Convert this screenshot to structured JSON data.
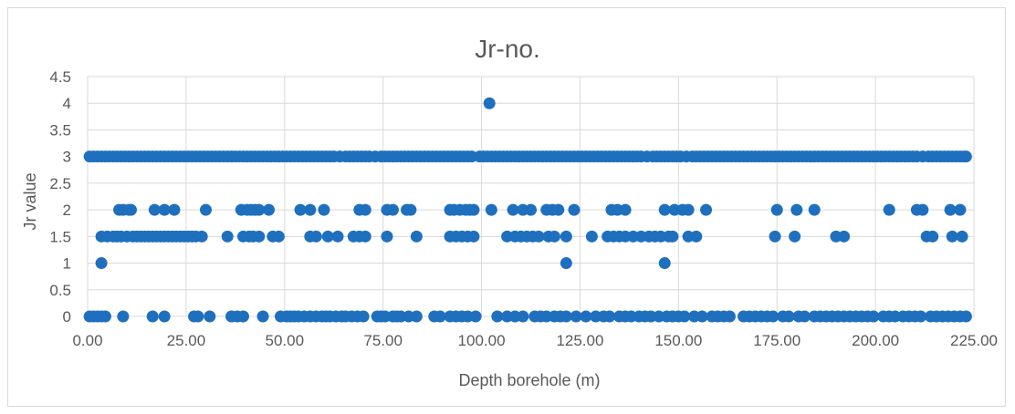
{
  "chart_data": {
    "type": "scatter",
    "title": "Jr-no.",
    "xlabel": "Depth borehole (m)",
    "ylabel": "Jr value",
    "xlim": [
      0,
      225
    ],
    "ylim": [
      0,
      4.5
    ],
    "x_ticks": [
      0,
      25,
      50,
      75,
      100,
      125,
      150,
      175,
      200,
      225
    ],
    "x_tick_labels": [
      "0.00",
      "25.00",
      "50.00",
      "75.00",
      "100.00",
      "125.00",
      "150.00",
      "175.00",
      "200.00",
      "225.00"
    ],
    "y_ticks": [
      0,
      0.5,
      1,
      1.5,
      2,
      2.5,
      3,
      3.5,
      4,
      4.5
    ],
    "y_tick_labels": [
      "0",
      "0.5",
      "1",
      "1.5",
      "2",
      "2.5",
      "3",
      "3.5",
      "4",
      "4.5"
    ],
    "grid": "vertical and horizontal major gridlines",
    "marker_color": "#1F6FBF",
    "series": [
      {
        "values_by_level": [
          {
            "y": 3,
            "x": [
              0.5,
              1.5,
              2.5,
              3.5,
              4.5,
              5.5,
              6.5,
              7.5,
              8.5,
              9.5,
              10.5,
              11.5,
              12.5,
              13.5,
              14.5,
              15.5,
              16.5,
              17.5,
              18.5,
              19.5,
              20.5,
              21.5,
              22.5,
              23.5,
              24.5,
              25.5,
              26.5,
              27.5,
              28.5,
              29.5,
              30.5,
              31.5,
              32.5,
              33.5,
              34.5,
              35.5,
              36.5,
              37.5,
              38.5,
              39.5,
              40.5,
              41.5,
              42.5,
              43.5,
              44.5,
              45.5,
              46.5,
              47.5,
              48.5,
              49.5,
              50.5,
              51.5,
              52.5,
              53.5,
              54.5,
              55.5,
              56.5,
              57.5,
              58.5,
              59.5,
              60.5,
              61.5,
              62.5,
              64,
              65.5,
              66.5,
              67.5,
              68.5,
              69.5,
              70.5,
              71.5,
              73,
              74.5,
              75.5,
              76.5,
              77.5,
              78.5,
              79.5,
              80.5,
              81.5,
              82.5,
              83.5,
              84.5,
              85.5,
              86.5,
              87.5,
              88.5,
              89.5,
              90.5,
              91.5,
              92.5,
              93.5,
              94.5,
              95.5,
              96.5,
              97.5,
              99.5,
              100.5,
              101.5,
              102.5,
              103.5,
              104.5,
              105.5,
              106.5,
              107.5,
              108.5,
              109.5,
              110.5,
              111.5,
              112.5,
              113.5,
              114.5,
              115.5,
              116.5,
              117.5,
              118.5,
              119.5,
              120.5,
              121.5,
              122.5,
              123.5,
              124.5,
              125.5,
              126.5,
              127.5,
              128.5,
              129.5,
              130.5,
              131.5,
              132.5,
              133.5,
              134.5,
              135.5,
              136.5,
              137.5,
              138.5,
              139.5,
              140.5,
              142,
              143.5,
              144.5,
              145.5,
              146.5,
              147.5,
              148.5,
              149.5,
              150.5,
              152,
              153.5,
              154.5,
              155.5,
              156.5,
              157.5,
              158.5,
              159.5,
              160.5,
              161.5,
              162.5,
              163.5,
              164.5,
              165.5,
              166.5,
              167.5,
              168.5,
              169.5,
              170.5,
              171.5,
              172.5,
              173.5,
              174.5,
              175.5,
              176.5,
              177.5,
              178.5,
              179.5,
              180.5,
              181.5,
              182.5,
              183.5,
              184.5,
              185.5,
              186.5,
              187.5,
              188.5,
              189.5,
              190.5,
              191.5,
              192.5,
              193.5,
              194.5,
              195.5,
              196.5,
              197.5,
              198.5,
              199.5,
              200.5,
              201.5,
              202.5,
              203.5,
              204.5,
              205.5,
              206.5,
              207.5,
              208.5,
              209.5,
              210.5,
              212,
              213.5,
              214.5,
              215.5,
              216.5,
              217.5,
              218.5,
              219.5,
              220.5,
              221.5,
              222.5,
              223
            ]
          },
          {
            "y": 4,
            "x": [
              102
            ]
          },
          {
            "y": 2,
            "x": [
              8,
              9,
              10.5,
              11,
              17,
              19.5,
              22,
              30,
              39,
              40.5,
              41.5,
              42.5,
              43.5,
              46,
              54,
              56.5,
              60,
              69,
              70.5,
              76,
              77.5,
              81,
              82,
              92,
              93,
              94.5,
              96,
              97,
              98,
              102.5,
              108,
              110.5,
              112.5,
              116.5,
              118,
              119.5,
              123.5,
              133,
              134.5,
              136.5,
              146.5,
              149,
              151,
              152.5,
              157,
              175,
              180,
              184.5,
              203.5,
              210.5,
              212,
              219,
              221.5
            ]
          },
          {
            "y": 1.5,
            "x": [
              3.5,
              5,
              6.5,
              7.5,
              8.5,
              10,
              11.5,
              12.5,
              13.5,
              14.5,
              15.5,
              16.5,
              17.5,
              18.5,
              19.5,
              20.5,
              21.5,
              22.5,
              23.5,
              24.5,
              25.5,
              26.5,
              27.5,
              29,
              35.5,
              39.5,
              41,
              42,
              43.5,
              47,
              48.5,
              56.5,
              58,
              61,
              63.5,
              67.5,
              69,
              70.5,
              76,
              83.5,
              92,
              93.5,
              95,
              96.5,
              98,
              106.5,
              108.5,
              110,
              111.5,
              113,
              114.5,
              117,
              118.5,
              121.5,
              128,
              132,
              133.5,
              135,
              136.5,
              138.5,
              140.5,
              142.5,
              144,
              145.5,
              147.5,
              148.5,
              152.5,
              154.5,
              174.5,
              179.5,
              190,
              192,
              213,
              214.5,
              219.5,
              222
            ]
          },
          {
            "y": 1,
            "x": [
              3.5,
              121.5,
              146.5
            ]
          },
          {
            "y": 0,
            "x": [
              0.5,
              1.5,
              2.5,
              3.5,
              4.5,
              9,
              16.5,
              19.5,
              27,
              28,
              31,
              36.5,
              38,
              39.5,
              44.5,
              49,
              50.5,
              51.5,
              52.5,
              53.5,
              55,
              56.5,
              58,
              59.5,
              60.5,
              61.5,
              63,
              64.5,
              65.5,
              67,
              68.5,
              70,
              73.5,
              74.5,
              75.5,
              77.5,
              78.5,
              79.5,
              81.5,
              83.5,
              88,
              89.5,
              92,
              93.5,
              95,
              96.5,
              98.5,
              104,
              106.5,
              108.5,
              110.5,
              113.5,
              115,
              116.5,
              118.5,
              120,
              121.5,
              124,
              126.5,
              129,
              131,
              132.5,
              135,
              136.5,
              138,
              140,
              141.5,
              143,
              145,
              147,
              148.5,
              150,
              151.5,
              154,
              156,
              158.5,
              160,
              161.5,
              163,
              166.5,
              168,
              169.5,
              171,
              172.5,
              174,
              176.5,
              178,
              180.5,
              182,
              184.5,
              186,
              187.5,
              189,
              190.5,
              192,
              193.5,
              195,
              196.5,
              198,
              199.5,
              202,
              203.5,
              205,
              207,
              208.5,
              210,
              211.5,
              214,
              215.5,
              217,
              218.5,
              220,
              221.5,
              223
            ]
          }
        ]
      }
    ]
  }
}
